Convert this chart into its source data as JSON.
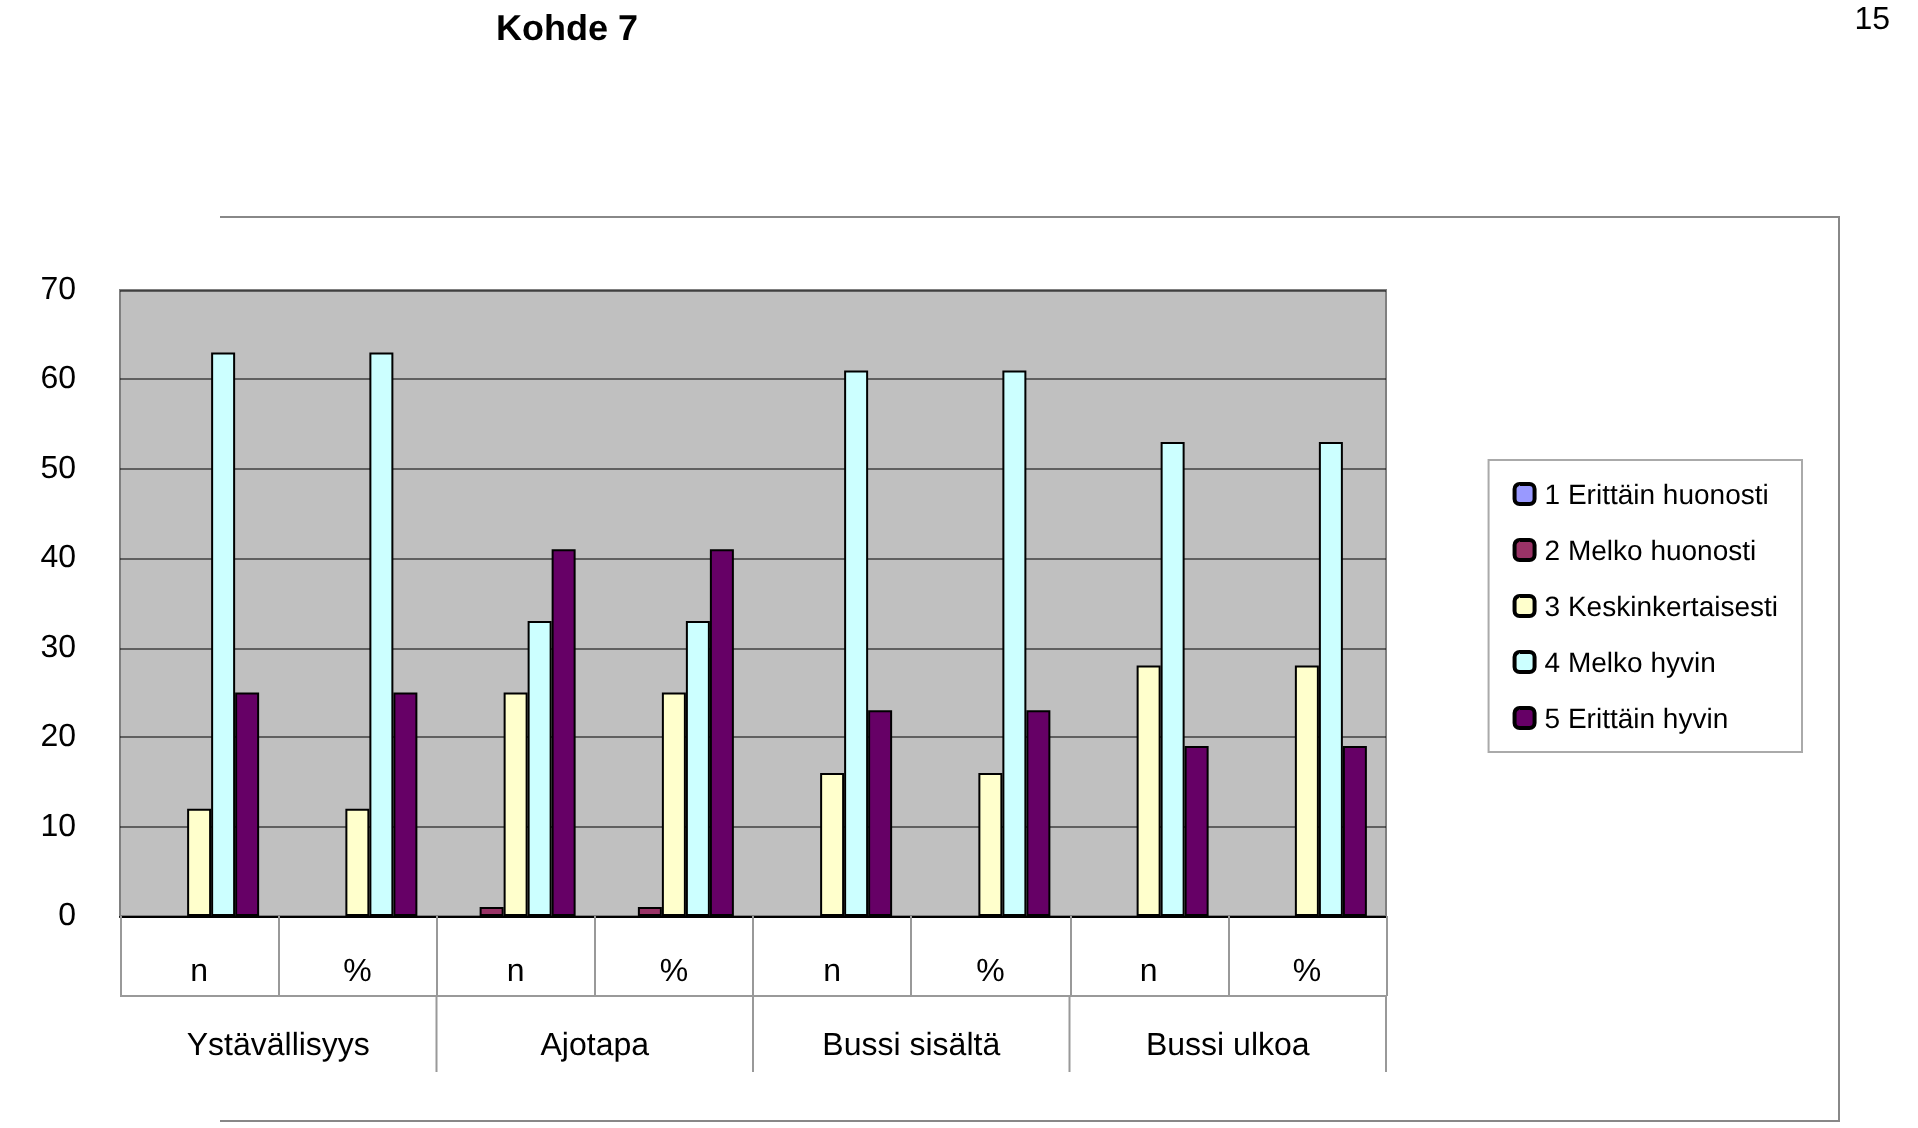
{
  "chart_data": {
    "type": "bar",
    "title": "Kohde 7",
    "categories": [
      "n",
      "%",
      "n",
      "%",
      "n",
      "%",
      "n",
      "%"
    ],
    "series": [
      {
        "name": "1 Erittäin huonosti",
        "color": "#9999ff",
        "values": [
          null,
          null,
          null,
          null,
          null,
          null,
          null,
          null
        ]
      },
      {
        "name": "2 Melko huonosti",
        "color": "#993366",
        "values": [
          null,
          null,
          1,
          1,
          null,
          null,
          null,
          null
        ]
      },
      {
        "name": "3 Keskinkertaisesti",
        "color": "#ffffcc",
        "values": [
          12,
          12,
          25,
          25,
          16,
          16,
          28,
          28
        ]
      },
      {
        "name": "4 Melko hyvin",
        "color": "#ccffff",
        "values": [
          63,
          63,
          33,
          33,
          61,
          61,
          53,
          53
        ]
      },
      {
        "name": "5 Erittäin hyvin",
        "color": "#660066",
        "values": [
          25,
          25,
          41,
          41,
          23,
          23,
          19,
          19
        ]
      }
    ],
    "annotations": [
      "15",
      "Ystävällisyys",
      "Ajotapa",
      "Bussi sisältä",
      "Bussi ulkoa"
    ],
    "ylim": [
      0,
      70
    ],
    "yticks": [
      0,
      10,
      20,
      30,
      40,
      50,
      60,
      70
    ],
    "grid": "y",
    "legend": "right"
  }
}
